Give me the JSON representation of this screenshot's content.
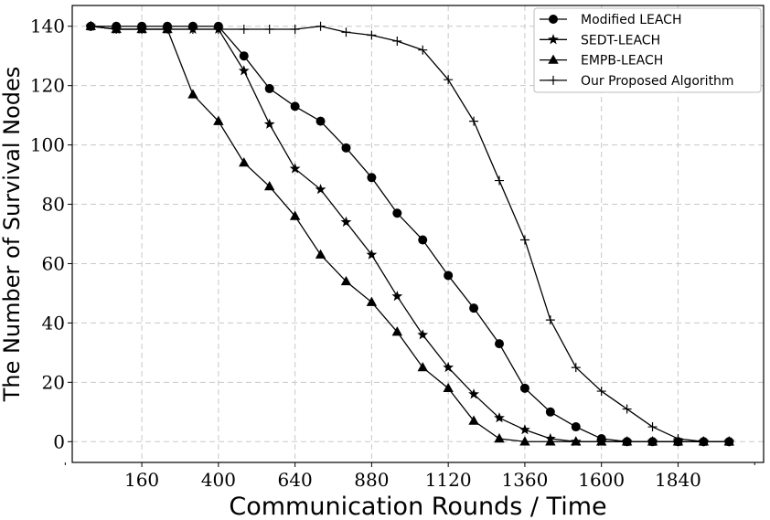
{
  "chart_data": {
    "type": "line",
    "title": "",
    "xlabel": "Communication Rounds / Time",
    "ylabel": "The Number of Survival Nodes",
    "xlim": [
      -58,
      2108
    ],
    "ylim": [
      -7,
      147
    ],
    "xticks": [
      160,
      400,
      640,
      880,
      1120,
      1360,
      1600,
      1840
    ],
    "yticks": [
      0,
      20,
      40,
      60,
      80,
      100,
      120,
      140
    ],
    "x_minor_ticks": [
      -80,
      2080
    ],
    "grid": true,
    "legend": "top-right",
    "x": [
      0,
      80,
      160,
      240,
      320,
      400,
      480,
      560,
      640,
      720,
      800,
      880,
      960,
      1040,
      1120,
      1200,
      1280,
      1360,
      1440,
      1520,
      1600,
      1680,
      1760,
      1840,
      1920,
      2000
    ],
    "series": [
      {
        "name": "Modified LEACH",
        "marker": "circle",
        "values": [
          140,
          140,
          140,
          140,
          140,
          140,
          130,
          119,
          113,
          108,
          99,
          89,
          77,
          68,
          56,
          45,
          33,
          18,
          10,
          5,
          1,
          0,
          0,
          0,
          0,
          0
        ]
      },
      {
        "name": "SEDT-LEACH",
        "marker": "star",
        "values": [
          140,
          139,
          139,
          139,
          139,
          139,
          125,
          107,
          92,
          85,
          74,
          63,
          49,
          36,
          25,
          16,
          8,
          4,
          1,
          0,
          0,
          0,
          0,
          0,
          0,
          0
        ]
      },
      {
        "name": "EMPB-LEACH",
        "marker": "triangle",
        "values": [
          140,
          139,
          139,
          139,
          117,
          108,
          94,
          86,
          76,
          63,
          54,
          47,
          37,
          25,
          18,
          7,
          1,
          0,
          0,
          0,
          0,
          0,
          0,
          0,
          0,
          0
        ]
      },
      {
        "name": "Our Proposed Algorithm",
        "marker": "plus",
        "values": [
          140,
          139,
          139,
          139,
          139,
          139,
          139,
          139,
          139,
          140,
          138,
          137,
          135,
          132,
          122,
          108,
          88,
          68,
          41,
          25,
          17,
          11,
          5,
          1,
          0,
          0
        ]
      }
    ]
  }
}
